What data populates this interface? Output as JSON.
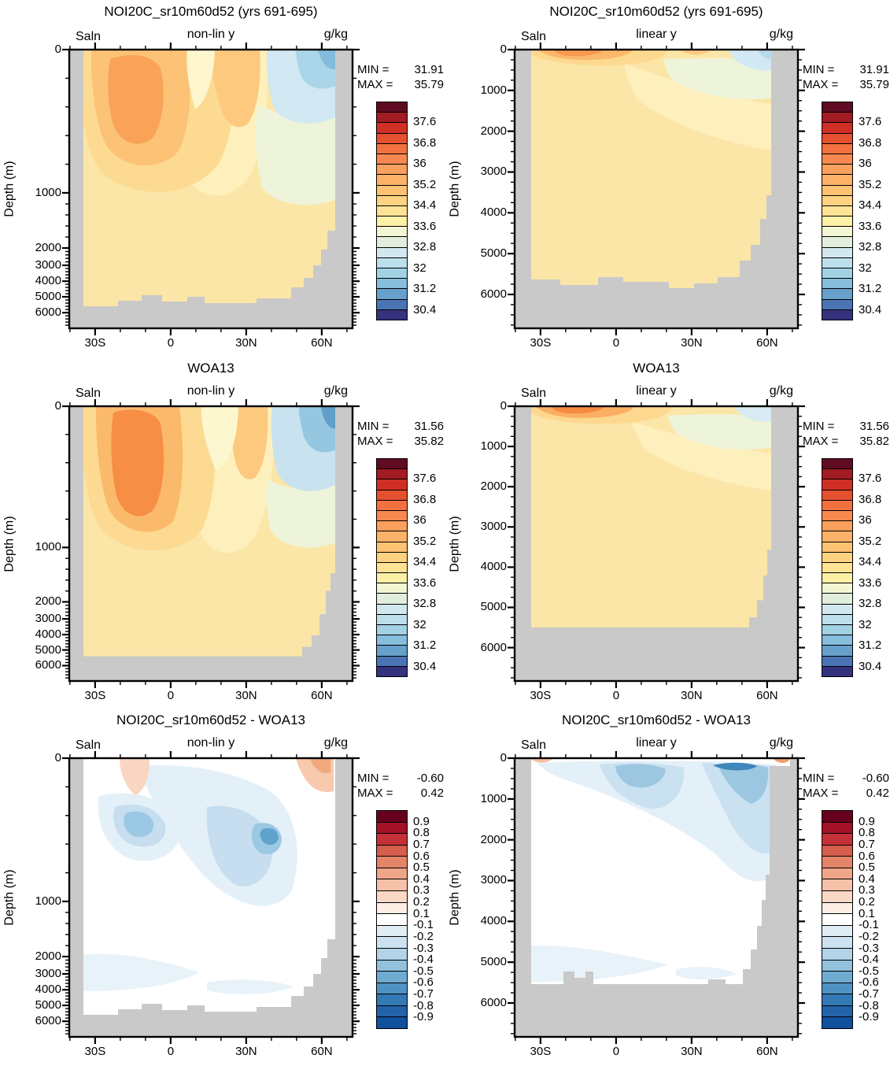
{
  "axes": {
    "ylabel": "Depth (m)",
    "depth_ticks": [
      "0",
      "1000",
      "2000",
      "3000",
      "4000",
      "5000",
      "6000"
    ],
    "lat_ticks": [
      "30S",
      "0",
      "30N",
      "60N"
    ]
  },
  "panels": [
    {
      "title": "NOI20C_sr10m60d52 (yrs 691-695)",
      "var_label": "Saln",
      "scale_label": "non-lin y",
      "units_label": "g/kg",
      "min_label": "MIN =",
      "min_value": "31.91",
      "max_label": "MAX =",
      "max_value": "35.79",
      "colorbar": "salinity",
      "field": "sal_nonlin_model"
    },
    {
      "title": "NOI20C_sr10m60d52 (yrs 691-695)",
      "var_label": "Saln",
      "scale_label": "linear y",
      "units_label": "g/kg",
      "min_label": "MIN =",
      "min_value": "31.91",
      "max_label": "MAX =",
      "max_value": "35.79",
      "colorbar": "salinity",
      "field": "sal_linear_model"
    },
    {
      "title": "WOA13",
      "var_label": "Saln",
      "scale_label": "non-lin y",
      "units_label": "g/kg",
      "min_label": "MIN =",
      "min_value": "31.56",
      "max_label": "MAX =",
      "max_value": "35.82",
      "colorbar": "salinity",
      "field": "sal_nonlin_woa"
    },
    {
      "title": "WOA13",
      "var_label": "Saln",
      "scale_label": "linear y",
      "units_label": "g/kg",
      "min_label": "MIN =",
      "min_value": "31.56",
      "max_label": "MAX =",
      "max_value": "35.82",
      "colorbar": "salinity",
      "field": "sal_linear_woa"
    },
    {
      "title": "NOI20C_sr10m60d52 - WOA13",
      "var_label": "Saln",
      "scale_label": "non-lin y",
      "units_label": "g/kg",
      "min_label": "MIN =",
      "min_value": "-0.60",
      "max_label": "MAX =",
      "max_value": "0.42",
      "colorbar": "difference",
      "field": "diff_nonlin"
    },
    {
      "title": "NOI20C_sr10m60d52 - WOA13",
      "var_label": "Saln",
      "scale_label": "linear y",
      "units_label": "g/kg",
      "min_label": "MIN =",
      "min_value": "-0.60",
      "max_label": "MAX =",
      "max_value": "0.42",
      "colorbar": "difference",
      "field": "diff_linear"
    }
  ],
  "colorbars": {
    "salinity": {
      "labels": [
        "37.6",
        "36.8",
        "36",
        "35.2",
        "34.4",
        "33.6",
        "32.8",
        "32",
        "31.2",
        "30.4"
      ],
      "label_start": 2,
      "label_every": 2,
      "colors": [
        "#600b21",
        "#a31b23",
        "#d02f26",
        "#e5502e",
        "#f2713f",
        "#f78950",
        "#faa05e",
        "#fcb268",
        "#fdc272",
        "#fdd280",
        "#fee394",
        "#fdf0a7",
        "#f3f6d3",
        "#e1eedd",
        "#d2e8ef",
        "#bddeeb",
        "#a2d1e4",
        "#86bedb",
        "#68a0cc",
        "#4b74b4",
        "#35327e"
      ]
    },
    "difference": {
      "labels": [
        "0.9",
        "0.8",
        "0.7",
        "0.6",
        "0.5",
        "0.4",
        "0.3",
        "0.2",
        "0.1",
        "-0.1",
        "-0.2",
        "-0.3",
        "-0.4",
        "-0.5",
        "-0.6",
        "-0.7",
        "-0.8",
        "-0.9"
      ],
      "label_start": 1,
      "label_every": 1,
      "colors": [
        "#67001f",
        "#a31228",
        "#c43138",
        "#d65e4c",
        "#e48468",
        "#efa589",
        "#f6c1a8",
        "#fad8c6",
        "#fdeee5",
        "#ffffff",
        "#e1edf5",
        "#cde2f0",
        "#b2d3e8",
        "#92c1de",
        "#6fabd1",
        "#4e93c4",
        "#3478b5",
        "#2263a9",
        "#11509d"
      ]
    }
  },
  "colors": {
    "land_gray": "#c9c9c9",
    "axis_black": "#000000",
    "field_yellow": "#fbe6a8",
    "diff_white": "#ffffff"
  },
  "chart_data": {
    "type": "heatmap",
    "description": "Six filled-contour latitude-depth sections of ocean salinity: model NOI20C_sr10m60d52 (yrs 691-695), WOA13 climatology, and their difference; left column non-linear depth axis, right column linear depth axis",
    "x": {
      "ticks": [
        "30S",
        "0",
        "30N",
        "60N"
      ],
      "minor_step_deg": 10,
      "range_deg": [
        -40,
        70
      ]
    },
    "y": {
      "label": "Depth (m)",
      "ticks": [
        0,
        1000,
        2000,
        3000,
        4000,
        5000,
        6000
      ],
      "range_m": [
        0,
        6830
      ]
    },
    "panels": [
      {
        "title": "NOI20C_sr10m60d52 (yrs 691-695)",
        "y_scale": "non-lin y",
        "variable": "Saln",
        "units": "g/kg",
        "min": 31.91,
        "max": 35.79,
        "colorbar": "salinity"
      },
      {
        "title": "NOI20C_sr10m60d52 (yrs 691-695)",
        "y_scale": "linear y",
        "variable": "Saln",
        "units": "g/kg",
        "min": 31.91,
        "max": 35.79,
        "colorbar": "salinity"
      },
      {
        "title": "WOA13",
        "y_scale": "non-lin y",
        "variable": "Saln",
        "units": "g/kg",
        "min": 31.56,
        "max": 35.82,
        "colorbar": "salinity"
      },
      {
        "title": "WOA13",
        "y_scale": "linear y",
        "variable": "Saln",
        "units": "g/kg",
        "min": 31.56,
        "max": 35.82,
        "colorbar": "salinity"
      },
      {
        "title": "NOI20C_sr10m60d52 - WOA13",
        "y_scale": "non-lin y",
        "variable": "Saln",
        "units": "g/kg",
        "min": -0.6,
        "max": 0.42,
        "colorbar": "difference"
      },
      {
        "title": "NOI20C_sr10m60d52 - WOA13",
        "y_scale": "linear y",
        "variable": "Saln",
        "units": "g/kg",
        "min": -0.6,
        "max": 0.42,
        "colorbar": "difference"
      }
    ],
    "colorbar_levels": {
      "salinity": {
        "min_level": 30.0,
        "max_level": 38.4,
        "step": 0.4,
        "labeled": [
          37.6,
          36.8,
          36,
          35.2,
          34.4,
          33.6,
          32.8,
          32,
          31.2,
          30.4
        ]
      },
      "difference": {
        "min_level": -0.9,
        "max_level": 0.9,
        "step": 0.1,
        "white_band": [
          -0.1,
          0.1
        ],
        "labeled": [
          0.9,
          0.8,
          0.7,
          0.6,
          0.5,
          0.4,
          0.3,
          0.2,
          0.1,
          -0.1,
          -0.2,
          -0.3,
          -0.4,
          -0.5,
          -0.6,
          -0.7,
          -0.8,
          -0.9
        ]
      }
    }
  }
}
